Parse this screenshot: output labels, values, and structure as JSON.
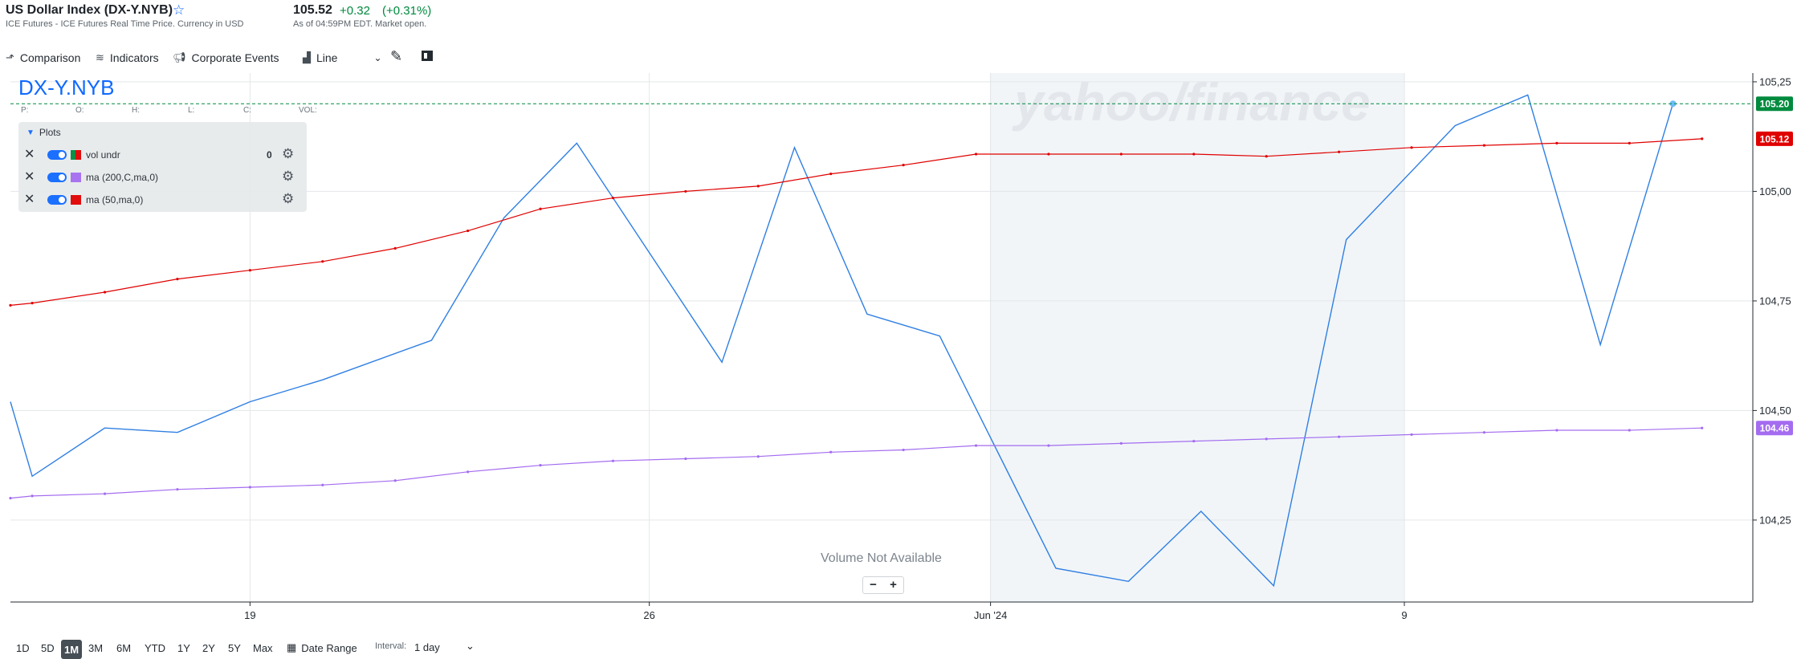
{
  "header": {
    "title": "US Dollar Index (DX-Y.NYB)",
    "subtitle": "ICE Futures - ICE Futures Real Time Price. Currency in USD",
    "price": "105.52",
    "change": "+0.32",
    "change_pct": "(+0.31%)",
    "as_of": "As of 04:59PM EDT. Market open."
  },
  "toolbar": {
    "comparison": "Comparison",
    "indicators": "Indicators",
    "corporate_events": "Corporate Events",
    "chart_type": "Line"
  },
  "chart_overlay": {
    "symbol": "DX-Y.NYB",
    "ohlc_labels": [
      "P:",
      "O:",
      "H:",
      "L:",
      "C:",
      "VOL:"
    ],
    "plots_title": "Plots",
    "plots": [
      {
        "label": "vol undr",
        "value": "0",
        "colors": [
          "#008a3e",
          "#e00000"
        ]
      },
      {
        "label": "ma (200,C,ma,0)",
        "value": "",
        "colors": [
          "#a46cf0"
        ]
      },
      {
        "label": "ma (50,ma,0)",
        "value": "",
        "colors": [
          "#e00000"
        ]
      }
    ],
    "volume_note": "Volume Not Available",
    "zoom_out": "−",
    "zoom_in": "+",
    "watermark": "yahoo/finance"
  },
  "chart_data": {
    "type": "line",
    "x_tick_labels": [
      {
        "label": "19",
        "x": 3.3
      },
      {
        "label": "26",
        "x": 8.8
      },
      {
        "label": "Jun '24",
        "x": 13.5
      },
      {
        "label": "9",
        "x": 19.2
      }
    ],
    "y_ticks": [
      104.25,
      104.5,
      104.75,
      105.0,
      105.25
    ],
    "y_tick_labels": [
      "104,25",
      "104,50",
      "104,75",
      "105,00",
      "105,25"
    ],
    "ylim": [
      104.063,
      105.27
    ],
    "x_range": [
      0,
      24
    ],
    "shaded_range": [
      13.5,
      19.2
    ],
    "series": [
      {
        "name": "DX-Y.NYB",
        "color": "#2f7fe3",
        "x": [
          0,
          0.3,
          1.3,
          2.3,
          3.3,
          4.3,
          5.8,
          6.8,
          7.8,
          9.8,
          10.8,
          11.8,
          12.8,
          14.4,
          15.4,
          16.4,
          17.4,
          18.4,
          19.9,
          20.9,
          21.9,
          22.9
        ],
        "y": [
          104.52,
          104.35,
          104.46,
          104.45,
          104.52,
          104.57,
          104.66,
          104.94,
          105.11,
          104.61,
          105.1,
          104.72,
          104.67,
          104.14,
          104.11,
          104.27,
          104.1,
          104.89,
          105.15,
          105.22,
          104.65,
          105.2
        ]
      },
      {
        "name": "ma (50,ma,0)",
        "color": "#e00000",
        "x": [
          0,
          0.3,
          1.3,
          2.3,
          3.3,
          4.3,
          5.3,
          6.3,
          7.3,
          8.3,
          9.3,
          10.3,
          11.3,
          12.3,
          13.3,
          14.3,
          15.3,
          16.3,
          17.3,
          18.3,
          19.3,
          20.3,
          21.3,
          22.3,
          23.3
        ],
        "y": [
          104.74,
          104.745,
          104.77,
          104.8,
          104.82,
          104.84,
          104.87,
          104.91,
          104.96,
          104.985,
          105.0,
          105.012,
          105.04,
          105.06,
          105.085,
          105.085,
          105.085,
          105.085,
          105.08,
          105.09,
          105.1,
          105.105,
          105.11,
          105.11,
          105.12
        ]
      },
      {
        "name": "ma (200,C,ma,0)",
        "color": "#a46cf0",
        "x": [
          0,
          0.3,
          1.3,
          2.3,
          3.3,
          4.3,
          5.3,
          6.3,
          7.3,
          8.3,
          9.3,
          10.3,
          11.3,
          12.3,
          13.3,
          14.3,
          15.3,
          16.3,
          17.3,
          18.3,
          19.3,
          20.3,
          21.3,
          22.3,
          23.3
        ],
        "y": [
          104.3,
          104.305,
          104.31,
          104.32,
          104.325,
          104.33,
          104.34,
          104.36,
          104.375,
          104.385,
          104.39,
          104.395,
          104.405,
          104.41,
          104.42,
          104.42,
          104.425,
          104.43,
          104.435,
          104.44,
          104.445,
          104.45,
          104.455,
          104.455,
          104.46
        ]
      }
    ],
    "price_line": {
      "value": 105.2,
      "label": "105.20",
      "color": "#008a3e"
    },
    "badges": [
      {
        "value": 105.12,
        "label": "105.12",
        "color": "#e00000"
      },
      {
        "value": 104.46,
        "label": "104.46",
        "color": "#a46cf0"
      }
    ],
    "grid": true
  },
  "bottom_bar": {
    "ranges": [
      "1D",
      "5D",
      "1M",
      "3M",
      "6M",
      "YTD",
      "1Y",
      "2Y",
      "5Y",
      "Max"
    ],
    "active_range": "1M",
    "date_range": "Date Range",
    "interval_label": "Interval:",
    "interval_value": "1 day"
  }
}
